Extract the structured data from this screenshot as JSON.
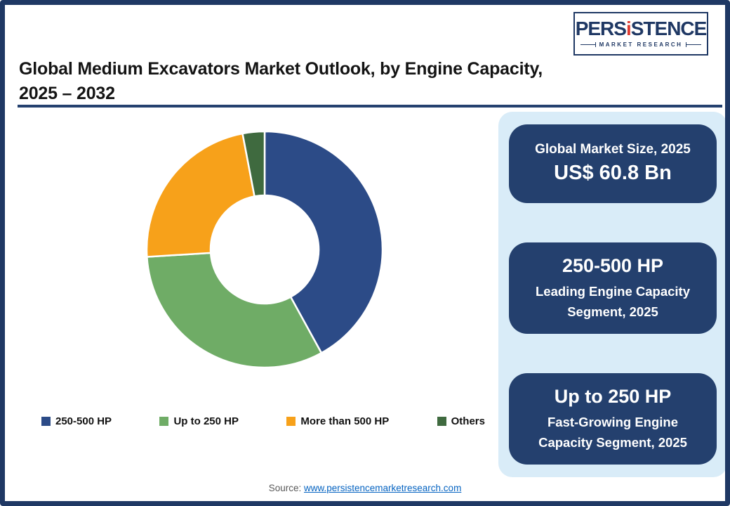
{
  "header": {
    "title_line1": "Global Medium Excavators Market Outlook, by Engine Capacity,",
    "title_line2": "2025 – 2032"
  },
  "logo": {
    "brand_pre": "PERS",
    "brand_i": "i",
    "brand_post": "STENCE",
    "tagline": "MARKET RESEARCH"
  },
  "chart_data": {
    "type": "pie",
    "subtype": "donut",
    "title": "Global Medium Excavators Market Outlook, by Engine Capacity, 2025 – 2032",
    "categories": [
      "250-500 HP",
      "Up to 250 HP",
      "More than 500 HP",
      "Others"
    ],
    "values": [
      42,
      32,
      23,
      3
    ],
    "unit": "percent share (estimated from arc angles)",
    "colors": [
      "#2C4B87",
      "#6FAC66",
      "#F7A11A",
      "#3F6A3F"
    ],
    "start_angle_deg": 0,
    "direction": "clockwise",
    "inner_radius_ratio": 0.46,
    "legend_position": "bottom",
    "data_labels": false
  },
  "info_panel": {
    "cards": [
      {
        "heading": "Global Market Size, 2025",
        "value": "US$ 60.8 Bn"
      },
      {
        "heading": "250-500 HP",
        "subtext": "Leading Engine Capacity Segment, 2025"
      },
      {
        "heading": "Up to 250 HP",
        "subtext": "Fast-Growing Engine Capacity Segment, 2025"
      }
    ]
  },
  "footer": {
    "source_label": "Source:",
    "source_link_text": "www.persistencemarketresearch.com"
  },
  "colors": {
    "page_border": "#1F3864",
    "title_rule": "#24416F",
    "panel_bg": "#D9ECF8",
    "card_bg": "#24406E",
    "card_text": "#FFFFFF",
    "source_label": "#595959",
    "link": "#0563C1",
    "logo_navy": "#1F3864",
    "logo_red": "#E03C31"
  }
}
